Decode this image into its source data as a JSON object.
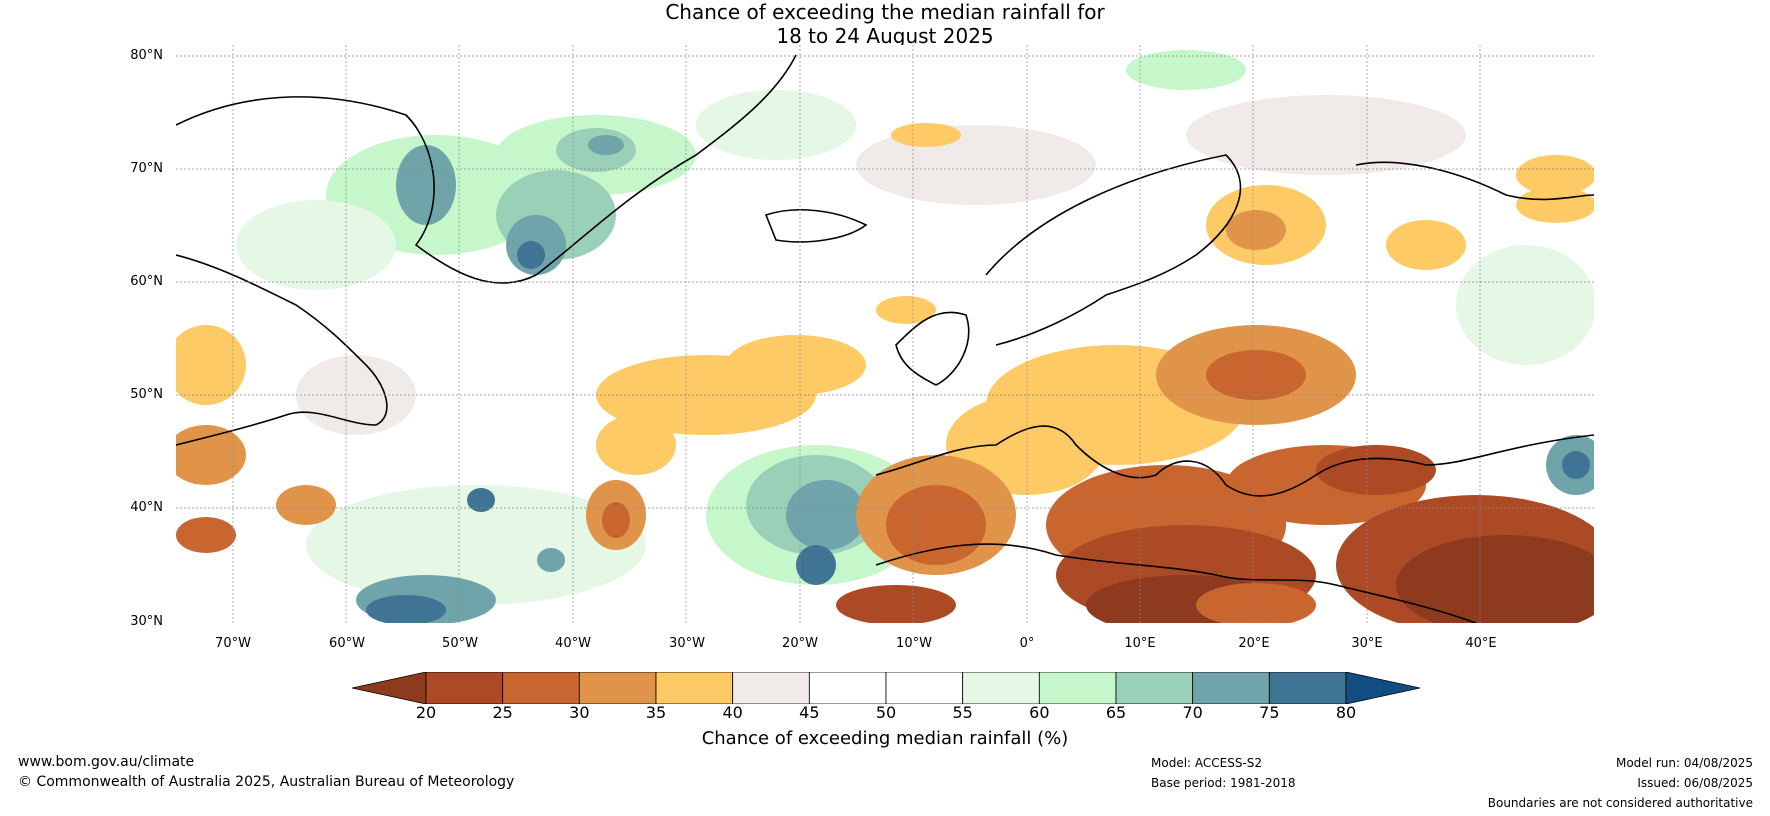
{
  "header": {
    "title_line1": "Chance of exceeding the median rainfall for",
    "title_line2": "18 to 24 August 2025"
  },
  "map": {
    "lat_labels": [
      "80°N",
      "70°N",
      "60°N",
      "50°N",
      "40°N",
      "30°N"
    ],
    "lon_labels": [
      "70°W",
      "60°W",
      "50°W",
      "40°W",
      "30°W",
      "20°W",
      "10°W",
      "0°",
      "10°E",
      "20°E",
      "30°E",
      "40°E"
    ],
    "lat_range": [
      30,
      81
    ],
    "lon_range": [
      -75,
      50
    ]
  },
  "legend": {
    "ticks": [
      "20",
      "25",
      "30",
      "35",
      "40",
      "45",
      "50",
      "55",
      "60",
      "65",
      "70",
      "75",
      "80"
    ],
    "colors": [
      "#8e3a1f",
      "#ad4a26",
      "#c9652f",
      "#e0944a",
      "#fdca66",
      "#f0ebe8",
      "#ffffff",
      "#ffffff",
      "#e5f7e5",
      "#c6f7cb",
      "#9ad0b8",
      "#6fa5aa",
      "#3f7495",
      "#134e83"
    ],
    "label": "Chance of exceeding median rainfall (%)"
  },
  "footer": {
    "website": "www.bom.gov.au/climate",
    "copyright": "© Commonwealth of Australia 2025, Australian Bureau of Meteorology",
    "model": "Model: ACCESS-S2",
    "base_period": "Base period: 1981-2018",
    "model_run": "Model run: 04/08/2025",
    "issued": "Issued: 06/08/2025",
    "disclaimer": "Boundaries are not considered authoritative"
  }
}
